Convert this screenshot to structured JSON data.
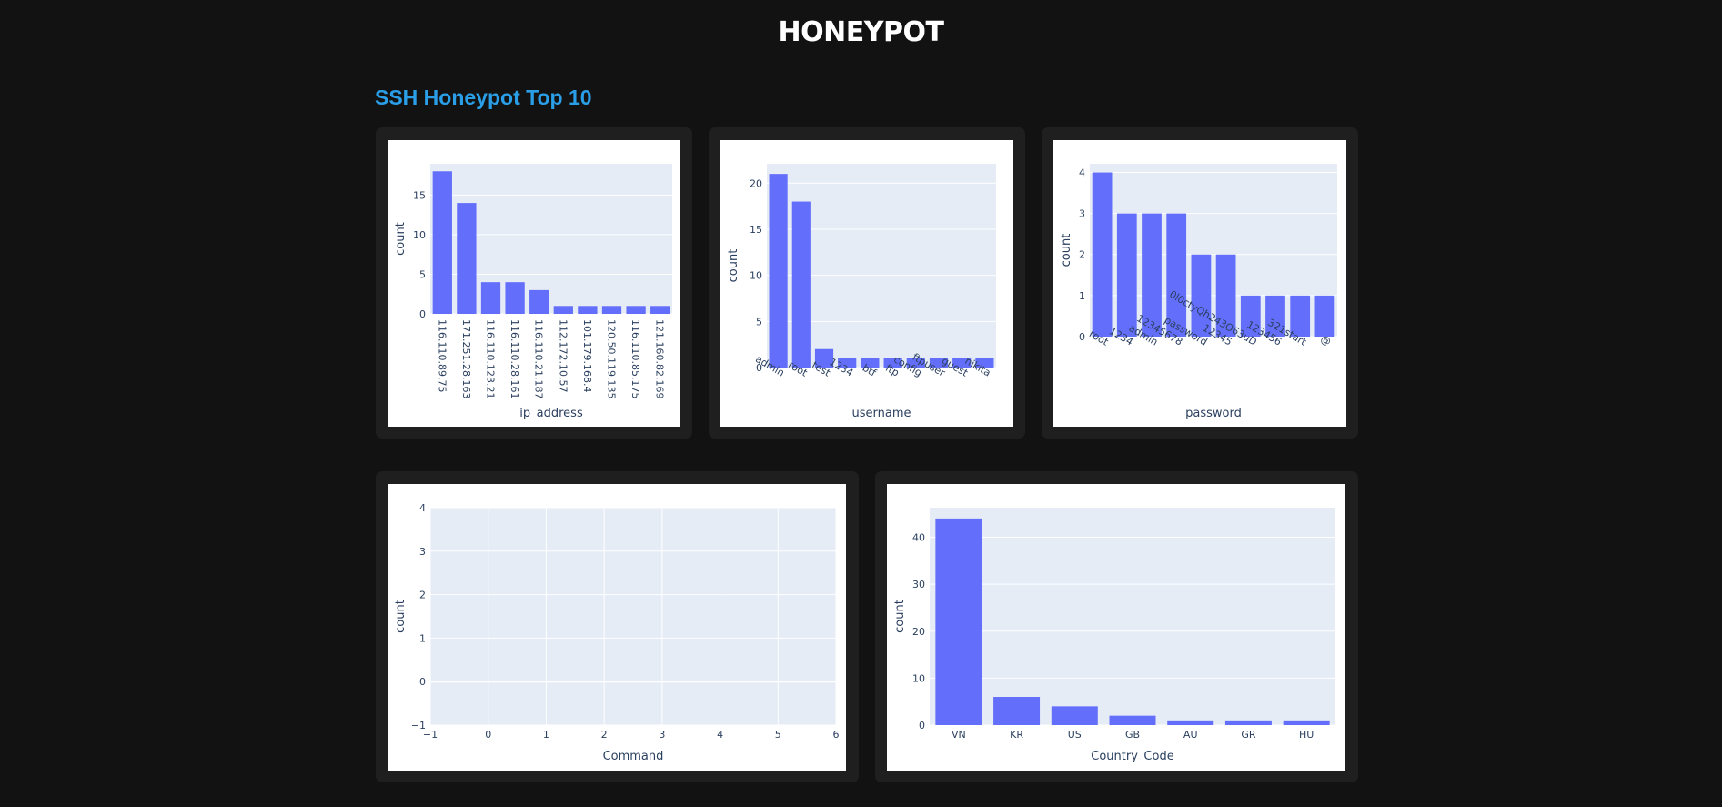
{
  "header": {
    "logo_text": "HONEYPOT",
    "section_title": "SSH Honeypot Top 10"
  },
  "colors": {
    "bar": "#636efa",
    "plot_bg": "#e5ecf6",
    "text": "#2a3f5f"
  },
  "chart_data": [
    {
      "id": "ip",
      "type": "bar",
      "xlabel": "ip_address",
      "ylabel": "count",
      "categories": [
        "116.110.89.75",
        "171.251.28.163",
        "116.110.123.21",
        "116.110.28.161",
        "116.110.21.187",
        "112.172.10.57",
        "101.179.168.4",
        "120.50.119.135",
        "116.110.85.175",
        "121.160.82.169"
      ],
      "values": [
        18,
        14,
        4,
        4,
        3,
        1,
        1,
        1,
        1,
        1
      ],
      "ylim": [
        0,
        18.95
      ],
      "yticks": [
        0,
        5,
        10,
        15
      ],
      "tick_rotation": 90
    },
    {
      "id": "username",
      "type": "bar",
      "xlabel": "username",
      "ylabel": "count",
      "categories": [
        "admin",
        "root",
        "test",
        "1234",
        "btf",
        "ftp",
        "config",
        "ftpuser",
        "guest",
        "nikita"
      ],
      "values": [
        21,
        18,
        2,
        1,
        1,
        1,
        1,
        1,
        1,
        1
      ],
      "ylim": [
        0,
        22.1
      ],
      "yticks": [
        0,
        5,
        10,
        15,
        20
      ],
      "tick_rotation": 30
    },
    {
      "id": "password",
      "type": "bar",
      "xlabel": "password",
      "ylabel": "count",
      "categories": [
        "root",
        "1234",
        "admin",
        "12345678",
        "password",
        "12345",
        "0l0ctyQh243O63uD",
        "123456",
        "321start",
        "@"
      ],
      "values": [
        4,
        3,
        3,
        3,
        2,
        2,
        1,
        1,
        1,
        1
      ],
      "ylim": [
        0,
        4.21
      ],
      "yticks": [
        0,
        1,
        2,
        3,
        4
      ],
      "tick_rotation": 30
    },
    {
      "id": "command",
      "type": "bar",
      "xlabel": "Command",
      "ylabel": "count",
      "categories": [],
      "values": [],
      "xlim": [
        -1,
        6
      ],
      "ylim": [
        -1,
        4
      ],
      "xticks": [
        -1,
        0,
        1,
        2,
        3,
        4,
        5,
        6
      ],
      "xtick_labels": [
        "−1",
        "0",
        "1",
        "2",
        "3",
        "4",
        "5",
        "6"
      ],
      "yticks": [
        -1,
        0,
        1,
        2,
        3,
        4
      ],
      "ytick_labels": [
        "−1",
        "0",
        "1",
        "2",
        "3",
        "4"
      ],
      "tick_rotation": 0
    },
    {
      "id": "country",
      "type": "bar",
      "xlabel": "Country_Code",
      "ylabel": "count",
      "categories": [
        "VN",
        "KR",
        "US",
        "GB",
        "AU",
        "GR",
        "HU"
      ],
      "values": [
        44,
        6,
        4,
        2,
        1,
        1,
        1
      ],
      "ylim": [
        0,
        46.3
      ],
      "yticks": [
        0,
        10,
        20,
        30,
        40
      ],
      "tick_rotation": 0
    }
  ]
}
